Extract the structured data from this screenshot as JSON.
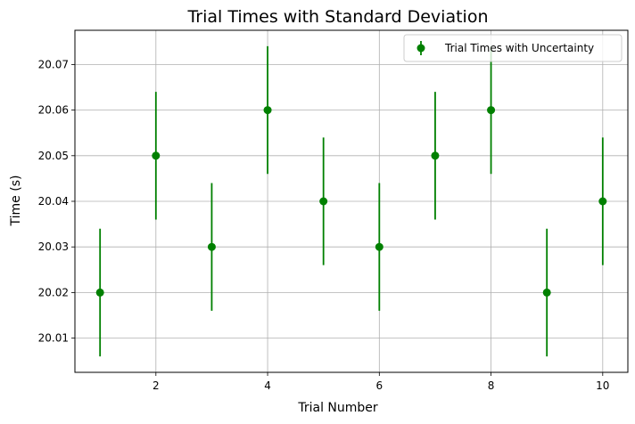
{
  "chart_data": {
    "type": "scatter",
    "title": "Trial Times with Standard Deviation",
    "xlabel": "Trial Number",
    "ylabel": "Time (s)",
    "xlim": [
      0.55,
      10.45
    ],
    "ylim": [
      20.0025,
      20.0775
    ],
    "xticks": [
      2,
      4,
      6,
      8,
      10
    ],
    "yticks": [
      20.01,
      20.02,
      20.03,
      20.04,
      20.05,
      20.06,
      20.07
    ],
    "grid": true,
    "legend_position": "top-right",
    "series": [
      {
        "name": "Trial Times with Uncertainty",
        "color": "#008000",
        "marker": "circle",
        "x": [
          1,
          2,
          3,
          4,
          5,
          6,
          7,
          8,
          9,
          10
        ],
        "y": [
          20.02,
          20.05,
          20.03,
          20.06,
          20.04,
          20.03,
          20.05,
          20.06,
          20.02,
          20.04
        ],
        "yerr": [
          0.014,
          0.014,
          0.014,
          0.014,
          0.014,
          0.014,
          0.014,
          0.014,
          0.014,
          0.014
        ]
      }
    ]
  }
}
